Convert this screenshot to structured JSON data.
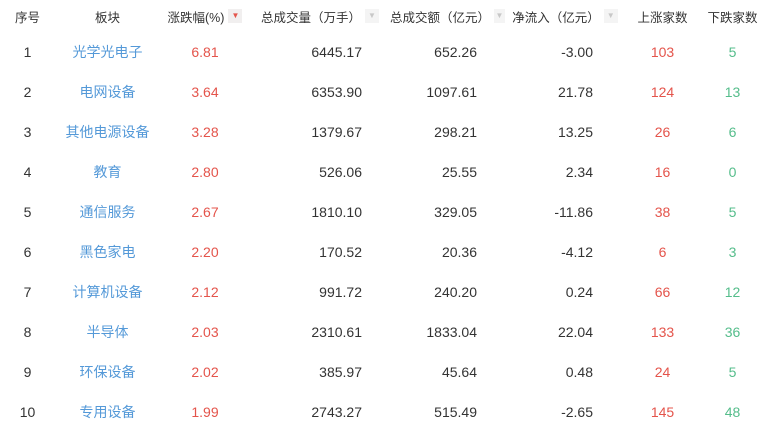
{
  "table": {
    "columns": [
      {
        "label": "序号",
        "sort": "none"
      },
      {
        "label": "板块",
        "sort": "none"
      },
      {
        "label": "涨跌幅(%)",
        "sort": "active"
      },
      {
        "label": "总成交量（万手）",
        "sort": "inactive"
      },
      {
        "label": "总成交额（亿元）",
        "sort": "inactive"
      },
      {
        "label": "净流入（亿元）",
        "sort": "inactive"
      },
      {
        "label": "上涨家数",
        "sort": "none"
      },
      {
        "label": "下跌家数",
        "sort": "none"
      }
    ],
    "rows": [
      {
        "index": "1",
        "sector": "光学光电子",
        "change": "6.81",
        "volume": "6445.17",
        "turnover": "652.26",
        "net_inflow": "-3.00",
        "up": "103",
        "down": "5"
      },
      {
        "index": "2",
        "sector": "电网设备",
        "change": "3.64",
        "volume": "6353.90",
        "turnover": "1097.61",
        "net_inflow": "21.78",
        "up": "124",
        "down": "13"
      },
      {
        "index": "3",
        "sector": "其他电源设备",
        "change": "3.28",
        "volume": "1379.67",
        "turnover": "298.21",
        "net_inflow": "13.25",
        "up": "26",
        "down": "6"
      },
      {
        "index": "4",
        "sector": "教育",
        "change": "2.80",
        "volume": "526.06",
        "turnover": "25.55",
        "net_inflow": "2.34",
        "up": "16",
        "down": "0"
      },
      {
        "index": "5",
        "sector": "通信服务",
        "change": "2.67",
        "volume": "1810.10",
        "turnover": "329.05",
        "net_inflow": "-11.86",
        "up": "38",
        "down": "5"
      },
      {
        "index": "6",
        "sector": "黑色家电",
        "change": "2.20",
        "volume": "170.52",
        "turnover": "20.36",
        "net_inflow": "-4.12",
        "up": "6",
        "down": "3"
      },
      {
        "index": "7",
        "sector": "计算机设备",
        "change": "2.12",
        "volume": "991.72",
        "turnover": "240.20",
        "net_inflow": "0.24",
        "up": "66",
        "down": "12"
      },
      {
        "index": "8",
        "sector": "半导体",
        "change": "2.03",
        "volume": "2310.61",
        "turnover": "1833.04",
        "net_inflow": "22.04",
        "up": "133",
        "down": "36"
      },
      {
        "index": "9",
        "sector": "环保设备",
        "change": "2.02",
        "volume": "385.97",
        "turnover": "45.64",
        "net_inflow": "0.48",
        "up": "24",
        "down": "5"
      },
      {
        "index": "10",
        "sector": "专用设备",
        "change": "1.99",
        "volume": "2743.27",
        "turnover": "515.49",
        "net_inflow": "-2.65",
        "up": "145",
        "down": "48"
      }
    ]
  },
  "icons": {
    "sort_desc_active": "▼",
    "sort_desc_inactive": "▼"
  },
  "colors": {
    "sector_blue": "#5499d8",
    "rise_red": "#e4544b",
    "fall_green": "#55bd8b",
    "text_dark": "#333333",
    "sort_inactive_gray": "#c8c8c8",
    "background": "#ffffff"
  }
}
